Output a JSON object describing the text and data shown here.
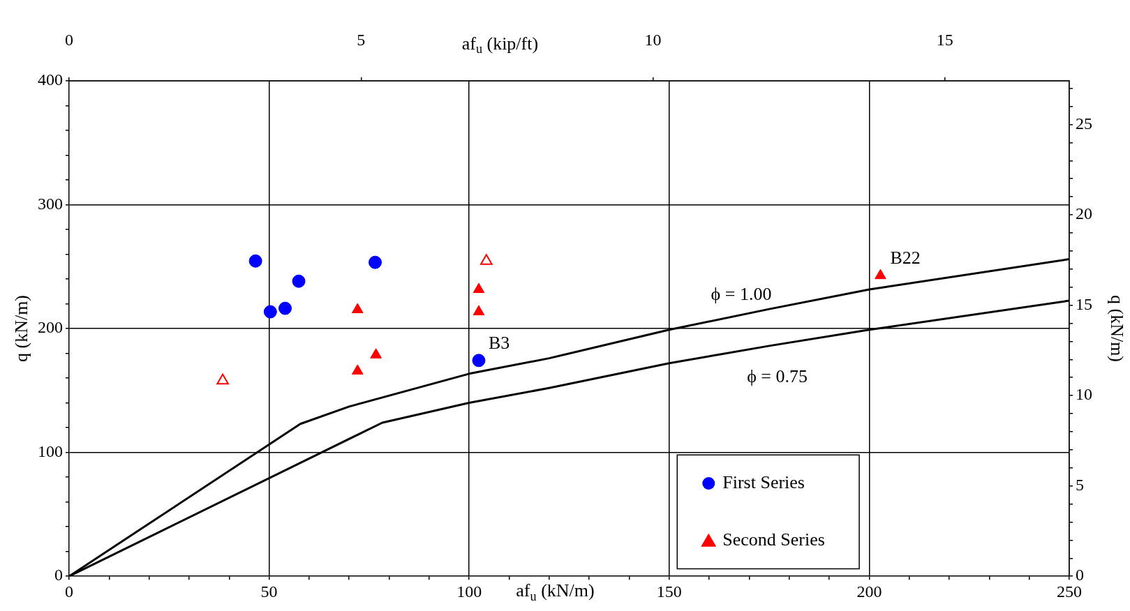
{
  "chart_data": {
    "type": "scatter",
    "xlabel": "af$_{u}$ (kN/m)",
    "x2label": "af$_{u}$ (kip/ft)",
    "ylabel": "q (kN/m)",
    "y2label": "q (kN/m)",
    "xlim": [
      0,
      250
    ],
    "xticks": [
      0,
      {
        "value": 10,
        "label": null
      },
      {
        "value": 20,
        "label": null
      },
      {
        "value": 30,
        "label": null
      },
      {
        "value": 40,
        "label": null
      },
      50,
      {
        "value": 60,
        "label": null
      },
      {
        "value": 70,
        "label": null
      },
      {
        "value": 80,
        "label": null
      },
      {
        "value": 90,
        "label": null
      },
      100,
      {
        "value": 110,
        "label": null
      },
      {
        "value": 120,
        "label": null
      },
      {
        "value": 130,
        "label": null
      },
      {
        "value": 140,
        "label": null
      },
      150,
      {
        "value": 160,
        "label": null
      },
      {
        "value": 170,
        "label": null
      },
      {
        "value": 180,
        "label": null
      },
      {
        "value": 190,
        "label": null
      },
      200,
      {
        "value": 210,
        "label": null
      },
      {
        "value": 220,
        "label": null
      },
      {
        "value": 230,
        "label": null
      },
      {
        "value": 240,
        "label": null
      },
      250
    ],
    "x2lim": [
      0,
      17.13
    ],
    "x2ticks": [
      0,
      5,
      10,
      15
    ],
    "ylim": [
      0,
      400
    ],
    "yticks": [
      0,
      {
        "value": 20,
        "label": null
      },
      {
        "value": 40,
        "label": null
      },
      {
        "value": 60,
        "label": null
      },
      {
        "value": 80,
        "label": null
      },
      100,
      {
        "value": 120,
        "label": null
      },
      {
        "value": 140,
        "label": null
      },
      {
        "value": 160,
        "label": null
      },
      {
        "value": 180,
        "label": null
      },
      200,
      {
        "value": 220,
        "label": null
      },
      {
        "value": 240,
        "label": null
      },
      {
        "value": 260,
        "label": null
      },
      {
        "value": 280,
        "label": null
      },
      300,
      {
        "value": 320,
        "label": null
      },
      {
        "value": 340,
        "label": null
      },
      {
        "value": 360,
        "label": null
      },
      {
        "value": 380,
        "label": null
      },
      400
    ],
    "y2lim": [
      0,
      27.42
    ],
    "y2ticks": [
      0,
      {
        "value": 1,
        "label": null
      },
      {
        "value": 2,
        "label": null
      },
      {
        "value": 3,
        "label": null
      },
      {
        "value": 4,
        "label": null
      },
      5,
      {
        "value": 6,
        "label": null
      },
      {
        "value": 7,
        "label": null
      },
      {
        "value": 8,
        "label": null
      },
      {
        "value": 9,
        "label": null
      },
      10,
      {
        "value": 11,
        "label": null
      },
      {
        "value": 12,
        "label": null
      },
      {
        "value": 13,
        "label": null
      },
      {
        "value": 14,
        "label": null
      },
      15,
      {
        "value": 16,
        "label": null
      },
      {
        "value": 17,
        "label": null
      },
      {
        "value": 18,
        "label": null
      },
      {
        "value": 19,
        "label": null
      },
      20,
      {
        "value": 21,
        "label": null
      },
      {
        "value": 22,
        "label": null
      },
      {
        "value": 23,
        "label": null
      },
      {
        "value": 24,
        "label": null
      },
      25,
      {
        "value": 26,
        "label": null
      },
      {
        "value": 27,
        "label": null
      }
    ],
    "grid": true,
    "legend": "bottom right",
    "series": [
      {
        "name": "First Series",
        "type": "scatter",
        "marker": "circle",
        "color": "#0000ff",
        "x": [
          46.6,
          50.3,
          54.0,
          57.4,
          76.5,
          102.4
        ],
        "values": [
          254.5,
          213.5,
          216.3,
          238.2,
          253.4,
          174.2
        ]
      },
      {
        "name": "Second Series",
        "type": "scatter",
        "marker": "triangle",
        "color": "#ff0000",
        "x": [
          72.1,
          76.7,
          72.1,
          102.4,
          102.4,
          202.8
        ],
        "values": [
          215.2,
          178.7,
          165.7,
          231.5,
          213.5,
          242.7
        ]
      },
      {
        "marker": "triangle",
        "color": "#ff0000",
        "x": [
          38.4,
          104.3
        ],
        "values": [
          157.9,
          254.5
        ]
      },
      {
        "name": "ϕ = 1.00",
        "type": "line",
        "marker": "none",
        "color": "#000000",
        "x": [
          0,
          57.8,
          70,
          100,
          120,
          150,
          175,
          200,
          250
        ],
        "values": [
          0,
          123,
          137,
          163.5,
          176,
          199,
          215.7,
          231.5,
          256
        ]
      },
      {
        "name": "ϕ = 0.75",
        "type": "line",
        "marker": "none",
        "color": "#000000",
        "x": [
          0,
          78.3,
          100,
          120,
          150,
          175,
          200,
          250
        ],
        "values": [
          0,
          124,
          140,
          152,
          172,
          186,
          199,
          222.5
        ]
      }
    ],
    "annotations": [
      {
        "text": "B3",
        "x": 102.4,
        "y": 174.2
      },
      {
        "text": "B22",
        "x": 202.8,
        "y": 242.7
      }
    ]
  }
}
